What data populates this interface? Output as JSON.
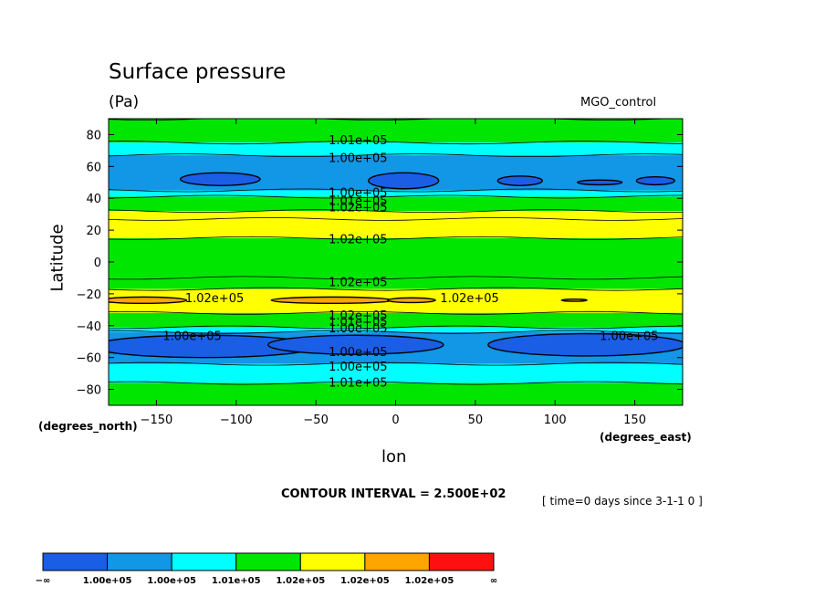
{
  "chart_data": {
    "type": "contour",
    "title": "Surface pressure",
    "units": "(Pa)",
    "run_label": "MGO_control",
    "xlabel": "lon",
    "ylabel": "Latitude",
    "x_units_label": "(degrees_east)",
    "y_units_label": "(degrees_north)",
    "xlim": [
      -180,
      180
    ],
    "ylim": [
      -90,
      90
    ],
    "x_ticks": [
      -150,
      -100,
      -50,
      0,
      50,
      100,
      150
    ],
    "y_ticks": [
      80,
      60,
      40,
      20,
      0,
      -20,
      -40,
      -60,
      -80
    ],
    "contour_interval_text": "CONTOUR INTERVAL = 2.500E+02",
    "time_note": "[ time=0 days since 3-1-1 0 ]",
    "colorbar": {
      "colors": [
        "#1a5ee6",
        "#1296e6",
        "#00ffff",
        "#00e600",
        "#ffff00",
        "#ffa500",
        "#ff1010"
      ],
      "labels": [
        "−∞",
        "1.00e+05",
        "1.00e+05",
        "1.01e+05",
        "1.02e+05",
        "1.02e+05",
        "1.02e+05",
        "∞"
      ]
    },
    "contour_labels": [
      {
        "text": "1.01e+05",
        "lon": -42,
        "lat": 75
      },
      {
        "text": "1.00e+05",
        "lon": -42,
        "lat": 64
      },
      {
        "text": "1.00e+05",
        "lon": -42,
        "lat": 42
      },
      {
        "text": "1.01e+05",
        "lon": -42,
        "lat": 37
      },
      {
        "text": "1.02e+05",
        "lon": -42,
        "lat": 33
      },
      {
        "text": "1.02e+05",
        "lon": -42,
        "lat": 13
      },
      {
        "text": "1.02e+05",
        "lon": -42,
        "lat": -14
      },
      {
        "text": "1.02e+05",
        "lon": -132,
        "lat": -24
      },
      {
        "text": "1.02e+05",
        "lon": 28,
        "lat": -24
      },
      {
        "text": "1.02e+05",
        "lon": -42,
        "lat": -35
      },
      {
        "text": "1.01e+05",
        "lon": -42,
        "lat": -39
      },
      {
        "text": "1.00e+05",
        "lon": -42,
        "lat": -43
      },
      {
        "text": "1.00e+05",
        "lon": -146,
        "lat": -48
      },
      {
        "text": "1.00e+05",
        "lon": 128,
        "lat": -48
      },
      {
        "text": "1.00e+05",
        "lon": -42,
        "lat": -58
      },
      {
        "text": "1.00e+05",
        "lon": -42,
        "lat": -67
      },
      {
        "text": "1.01e+05",
        "lon": -42,
        "lat": -77
      }
    ],
    "bands": [
      {
        "lat": [
          75,
          90
        ],
        "level": 3
      },
      {
        "lat": [
          67,
          75
        ],
        "level": 2
      },
      {
        "lat": [
          45,
          67
        ],
        "level": 1
      },
      {
        "lat": [
          41,
          45
        ],
        "level": 2
      },
      {
        "lat": [
          32,
          41
        ],
        "level": 3
      },
      {
        "lat": [
          27,
          32
        ],
        "level": 4
      },
      {
        "lat": [
          15,
          27
        ],
        "level": 4
      },
      {
        "lat": [
          -10,
          15
        ],
        "level": 3
      },
      {
        "lat": [
          -17,
          -10
        ],
        "level": 3
      },
      {
        "lat": [
          -32,
          -17
        ],
        "level": 4
      },
      {
        "lat": [
          -41,
          -32
        ],
        "level": 3
      },
      {
        "lat": [
          -44,
          -41
        ],
        "level": 2
      },
      {
        "lat": [
          -64,
          -44
        ],
        "level": 1
      },
      {
        "lat": [
          -76,
          -64
        ],
        "level": 2
      },
      {
        "lat": [
          -90,
          -76
        ],
        "level": 3
      }
    ],
    "blobs": [
      {
        "lon": -110,
        "lat": 52,
        "rlon": 25,
        "rlat": 4,
        "level": 0
      },
      {
        "lon": 5,
        "lat": 51,
        "rlon": 22,
        "rlat": 5,
        "level": 0
      },
      {
        "lon": 78,
        "lat": 51,
        "rlon": 14,
        "rlat": 3,
        "level": 0
      },
      {
        "lon": 128,
        "lat": 50,
        "rlon": 14,
        "rlat": 1.5,
        "level": 0
      },
      {
        "lon": 163,
        "lat": 51,
        "rlon": 12,
        "rlat": 2.5,
        "level": 0
      },
      {
        "lon": -158,
        "lat": -24,
        "rlon": 27,
        "rlat": 2,
        "level": 5
      },
      {
        "lon": -40,
        "lat": -24,
        "rlon": 38,
        "rlat": 2,
        "level": 5
      },
      {
        "lon": 10,
        "lat": -24,
        "rlon": 15,
        "rlat": 1.5,
        "level": 5
      },
      {
        "lon": 112,
        "lat": -24,
        "rlon": 8,
        "rlat": 0.7,
        "level": 5
      },
      {
        "lon": -120,
        "lat": -53,
        "rlon": 70,
        "rlat": 7,
        "level": 0
      },
      {
        "lon": -25,
        "lat": -52,
        "rlon": 55,
        "rlat": 6,
        "level": 0
      },
      {
        "lon": 120,
        "lat": -52,
        "rlon": 62,
        "rlat": 7,
        "level": 0
      }
    ]
  }
}
